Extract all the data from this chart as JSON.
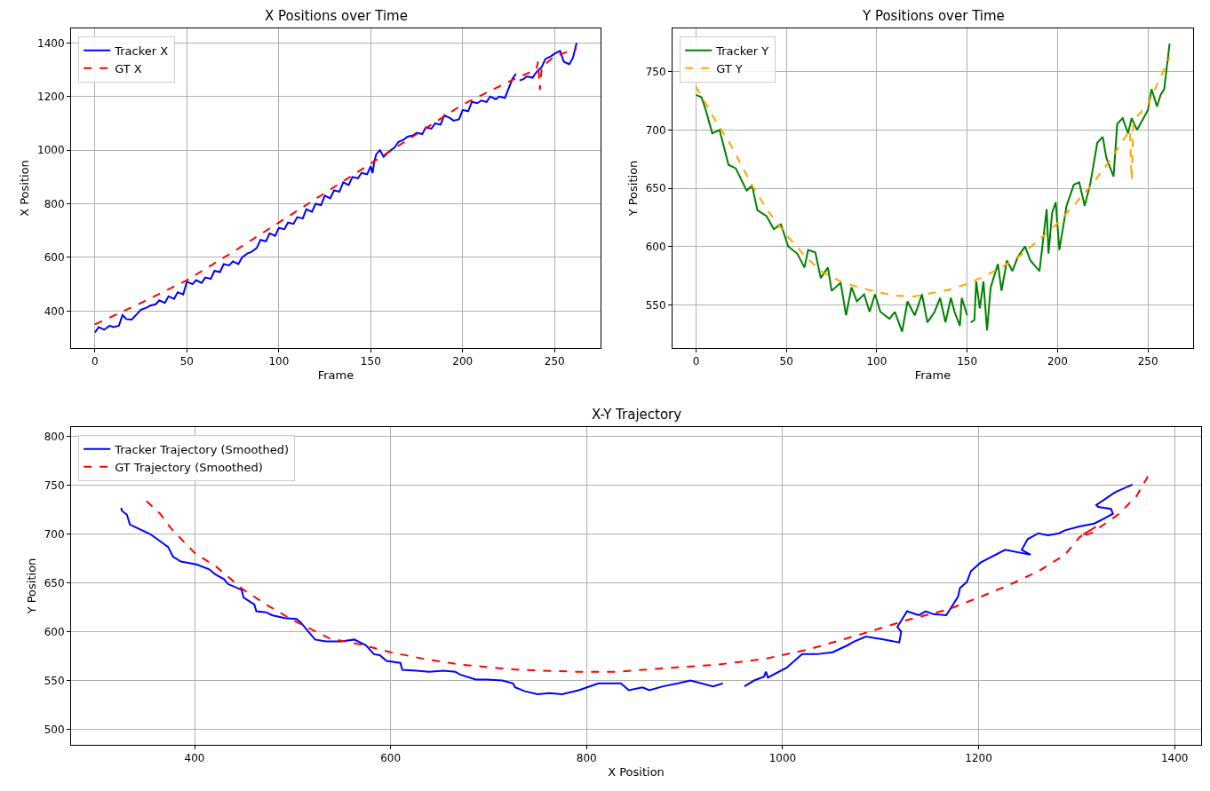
{
  "chart_data": [
    {
      "type": "line",
      "title": "X Positions over Time",
      "xlabel": "Frame",
      "ylabel": "X Position",
      "xlim": [
        -13,
        275
      ],
      "ylim": [
        262,
        1454
      ],
      "xticks": [
        0,
        50,
        100,
        150,
        200,
        250
      ],
      "yticks": [
        400,
        600,
        800,
        1000,
        1200,
        1400
      ],
      "grid": true,
      "legend": "top left",
      "series": [
        {
          "name": "Tracker X",
          "color": "#0000ff",
          "line_style": "solid",
          "x": [
            0,
            2,
            5,
            8,
            10,
            13,
            15,
            17,
            20,
            23,
            25,
            28,
            30,
            33,
            35,
            38,
            40,
            43,
            45,
            48,
            50,
            53,
            55,
            58,
            60,
            63,
            65,
            68,
            70,
            73,
            75,
            78,
            80,
            83,
            85,
            88,
            90,
            93,
            95,
            98,
            100,
            103,
            105,
            108,
            110,
            113,
            115,
            118,
            120,
            123,
            125,
            128,
            130,
            133,
            135,
            138,
            140,
            143,
            145,
            148,
            150,
            151,
            152,
            153,
            155,
            157,
            160,
            163,
            165,
            168,
            170,
            173,
            175,
            178,
            180,
            183,
            185,
            188,
            190,
            193,
            195,
            198,
            200,
            203,
            205,
            208,
            210,
            213,
            215,
            218,
            220,
            223,
            225,
            227,
            229,
            230,
            231,
            233,
            235,
            238,
            240,
            243,
            245,
            248,
            250,
            253,
            255,
            258,
            260,
            262
          ],
          "values": [
            320,
            340,
            330,
            345,
            340,
            345,
            385,
            370,
            368,
            390,
            405,
            412,
            420,
            425,
            440,
            430,
            455,
            445,
            470,
            462,
            510,
            500,
            515,
            505,
            525,
            520,
            550,
            545,
            575,
            570,
            585,
            575,
            600,
            615,
            620,
            635,
            665,
            660,
            690,
            680,
            710,
            705,
            730,
            725,
            750,
            745,
            780,
            770,
            800,
            795,
            830,
            820,
            850,
            845,
            880,
            870,
            900,
            895,
            915,
            910,
            940,
            915,
            960,
            985,
            1000,
            975,
            995,
            1010,
            1030,
            1040,
            1050,
            1055,
            1065,
            1060,
            1085,
            1080,
            1100,
            1095,
            1130,
            1120,
            1110,
            1115,
            1150,
            1145,
            1180,
            1175,
            1185,
            1180,
            1200,
            1190,
            1200,
            1195,
            1230,
            1265,
            1285,
            null,
            1260,
            1265,
            1275,
            1270,
            1290,
            1310,
            1340,
            1350,
            1360,
            1370,
            1330,
            1320,
            1345,
            1400
          ]
        },
        {
          "name": "GT X",
          "color": "#ff0000",
          "line_style": "dashed",
          "x": [
            0,
            25,
            50,
            75,
            100,
            125,
            150,
            175,
            200,
            225,
            238,
            240,
            241,
            242,
            243,
            250,
            262
          ],
          "values": [
            350,
            430,
            515,
            620,
            730,
            840,
            950,
            1060,
            1170,
            1255,
            1295,
            1300,
            1330,
            1225,
            1310,
            1350,
            1378
          ]
        }
      ]
    },
    {
      "type": "line",
      "title": "Y Positions over Time",
      "xlabel": "Frame",
      "ylabel": "Y Position",
      "xlim": [
        -13,
        275
      ],
      "ylim": [
        513,
        787
      ],
      "xticks": [
        0,
        50,
        100,
        150,
        200,
        250
      ],
      "yticks": [
        550,
        600,
        650,
        700,
        750
      ],
      "grid": true,
      "legend": "top left",
      "series": [
        {
          "name": "Tracker Y",
          "color": "#008000",
          "line_style": "solid",
          "x": [
            0,
            3,
            5,
            9,
            13,
            18,
            22,
            28,
            31,
            34,
            39,
            43,
            47,
            51,
            56,
            60,
            62,
            66,
            69,
            73,
            75,
            80,
            83,
            86,
            89,
            93,
            96,
            99,
            102,
            107,
            110,
            114,
            117,
            121,
            125,
            128,
            132,
            135,
            138,
            141,
            143,
            146,
            147,
            150,
            151,
            152,
            154,
            155,
            157,
            159,
            161,
            163,
            167,
            169,
            172,
            175,
            178,
            182,
            185,
            190,
            194,
            195,
            197,
            199,
            201,
            205,
            209,
            212,
            215,
            218,
            222,
            225,
            227,
            231,
            233,
            236,
            239,
            241,
            244,
            250,
            252,
            255,
            257,
            259,
            262
          ],
          "values": [
            730,
            728,
            719,
            697,
            700,
            670,
            667,
            648,
            652,
            631,
            626,
            615,
            619,
            600,
            594,
            582,
            597,
            595,
            573,
            582,
            562,
            569,
            541,
            565,
            553,
            559,
            544,
            559,
            544,
            538,
            544,
            527,
            553,
            541,
            559,
            535,
            544,
            556,
            535,
            556,
            544,
            532,
            556,
            541,
            null,
            535,
            537,
            570,
            547,
            570,
            528,
            565,
            585,
            562,
            588,
            579,
            591,
            600,
            588,
            579,
            632,
            594,
            629,
            638,
            597,
            635,
            653,
            655,
            635,
            653,
            689,
            694,
            676,
            660,
            705,
            710,
            697,
            710,
            700,
            717,
            735,
            720,
            730,
            735,
            774
          ]
        },
        {
          "name": "GT Y",
          "color": "#ffa500",
          "line_style": "dashed",
          "x": [
            0,
            10,
            20,
            30,
            40,
            50,
            60,
            70,
            80,
            90,
            100,
            110,
            120,
            130,
            140,
            150,
            160,
            170,
            180,
            190,
            200,
            210,
            220,
            230,
            240,
            241,
            242,
            250,
            262
          ],
          "values": [
            737,
            710,
            685,
            655,
            630,
            610,
            592,
            578,
            570,
            565,
            561,
            558,
            557,
            560,
            563,
            568,
            575,
            583,
            593,
            606,
            620,
            637,
            655,
            676,
            700,
            657,
            708,
            722,
            762
          ]
        }
      ]
    },
    {
      "type": "line",
      "title": "X-Y Trajectory",
      "xlabel": "X Position",
      "ylabel": "Y Position",
      "xlim": [
        274,
        1427
      ],
      "ylim": [
        484,
        810
      ],
      "xticks": [
        400,
        600,
        800,
        1000,
        1200,
        1400
      ],
      "yticks": [
        500,
        550,
        600,
        650,
        700,
        750,
        800
      ],
      "grid": true,
      "legend": "top left",
      "series": [
        {
          "name": "Tracker Trajectory (Smoothed)",
          "color": "#0000ff",
          "line_style": "solid",
          "x": [
            325,
            326,
            331,
            334,
            355,
            373,
            378,
            386,
            402,
            415,
            421,
            430,
            434,
            448,
            450,
            461,
            463,
            473,
            479,
            492,
            504,
            508,
            517,
            523,
            534,
            550,
            563,
            575,
            583,
            589,
            596,
            610,
            612,
            627,
            639,
            654,
            666,
            671,
            687,
            698,
            714,
            725,
            727,
            737,
            750,
            762,
            775,
            792,
            812,
            835,
            843,
            857,
            864,
            878,
            893,
            906,
            929,
            939,
            950,
            961,
            971,
            981,
            983,
            985,
            1004,
            1020,
            1035,
            1051,
            1066,
            1073,
            1085,
            1104,
            1119,
            1121,
            1117,
            1127,
            1133,
            1139,
            1146,
            1154,
            1167,
            1179,
            1181,
            1188,
            1192,
            1202,
            1227,
            1253,
            1244,
            1250,
            1261,
            1271,
            1282,
            1288,
            1303,
            1318,
            1328,
            1337,
            1335,
            1322,
            1320,
            1339,
            1357
          ],
          "values": [
            727,
            724,
            720,
            710,
            700,
            687,
            677,
            672,
            669,
            664,
            659,
            654,
            649,
            643,
            635,
            628,
            621,
            620,
            617,
            614,
            613,
            610,
            599,
            592,
            590,
            590,
            592,
            586,
            577,
            576,
            570,
            568,
            561,
            560,
            559,
            560,
            559,
            556,
            551,
            551,
            550,
            547,
            543,
            539,
            536,
            537,
            536,
            540,
            547,
            547,
            540,
            543,
            540,
            544,
            547,
            550,
            544,
            547,
            null,
            544,
            550,
            554,
            559,
            553,
            563,
            577,
            577,
            579,
            586,
            590,
            595,
            592,
            589,
            600,
            605,
            621,
            619,
            617,
            621,
            618,
            617,
            636,
            645,
            651,
            662,
            671,
            684,
            679,
            684,
            695,
            701,
            699,
            701,
            704,
            708,
            711,
            716,
            721,
            726,
            728,
            730,
            743,
            751
          ]
        },
        {
          "name": "GT Trajectory (Smoothed)",
          "color": "#ff0000",
          "line_style": "dashed",
          "x": [
            351,
            365,
            376,
            400,
            423,
            450,
            473,
            500,
            538,
            569,
            600,
            635,
            673,
            731,
            789,
            831,
            885,
            931,
            981,
            1027,
            1085,
            1127,
            1169,
            1200,
            1231,
            1261,
            1288,
            1303,
            1320,
            1304,
            1315,
            1342,
            1361,
            1373
          ],
          "values": [
            734,
            721,
            706,
            681,
            666,
            643,
            628,
            612,
            593,
            587,
            579,
            572,
            566,
            561,
            559,
            559,
            563,
            566,
            572,
            582,
            599,
            612,
            623,
            635,
            648,
            662,
            679,
            697,
            708,
            698,
            701,
            720,
            739,
            760
          ]
        }
      ]
    }
  ]
}
